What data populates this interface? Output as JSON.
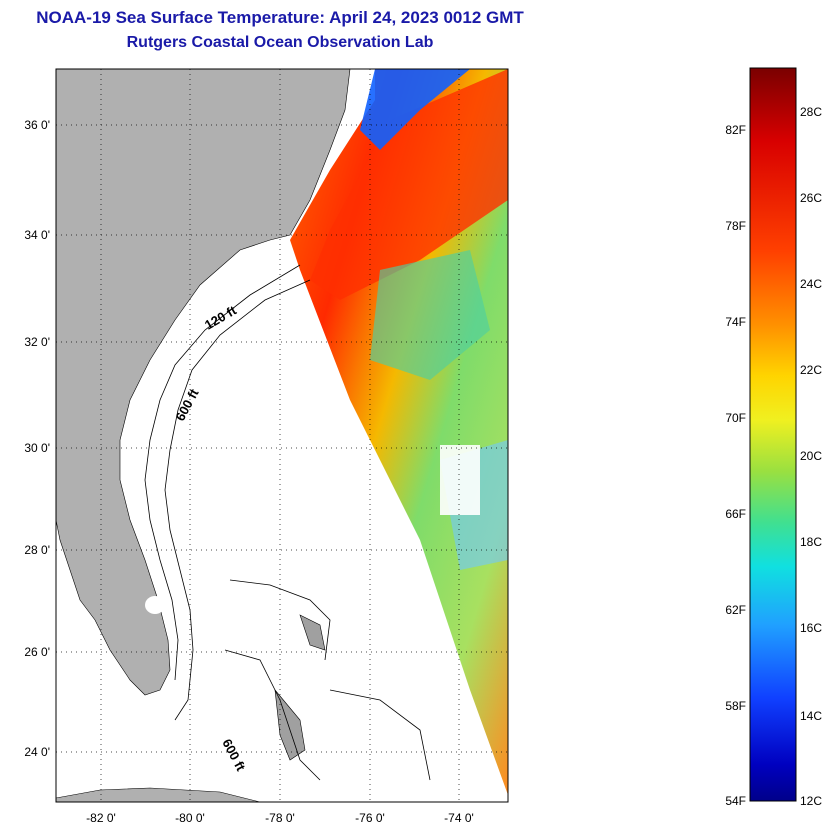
{
  "title": {
    "line1": "NOAA-19 Sea Surface Temperature:  April 24, 2023 0012 GMT",
    "line2": "Rutgers Coastal Ocean Observation Lab"
  },
  "colors": {
    "title": "#1a1aa8",
    "land": "#b0b0b0",
    "water_nodata": "#ffffff",
    "frame": "#000000"
  },
  "map": {
    "lon_ticks": [
      "-82 0'",
      "-80 0'",
      "-78 0'",
      "-76 0'",
      "-74 0'"
    ],
    "lat_ticks": [
      "36 0'",
      "34 0'",
      "32 0'",
      "30 0'",
      "28 0'",
      "26 0'",
      "24 0'"
    ],
    "contour_labels": [
      "120 ft",
      "600 ft",
      "600 ft"
    ],
    "gridlines": "dotted"
  },
  "colorbar": {
    "fahrenheit_labels": [
      "82F",
      "78F",
      "74F",
      "70F",
      "66F",
      "62F",
      "58F",
      "54F"
    ],
    "celsius_labels": [
      "28C",
      "26C",
      "24C",
      "22C",
      "20C",
      "18C",
      "16C",
      "14C",
      "12C"
    ]
  }
}
